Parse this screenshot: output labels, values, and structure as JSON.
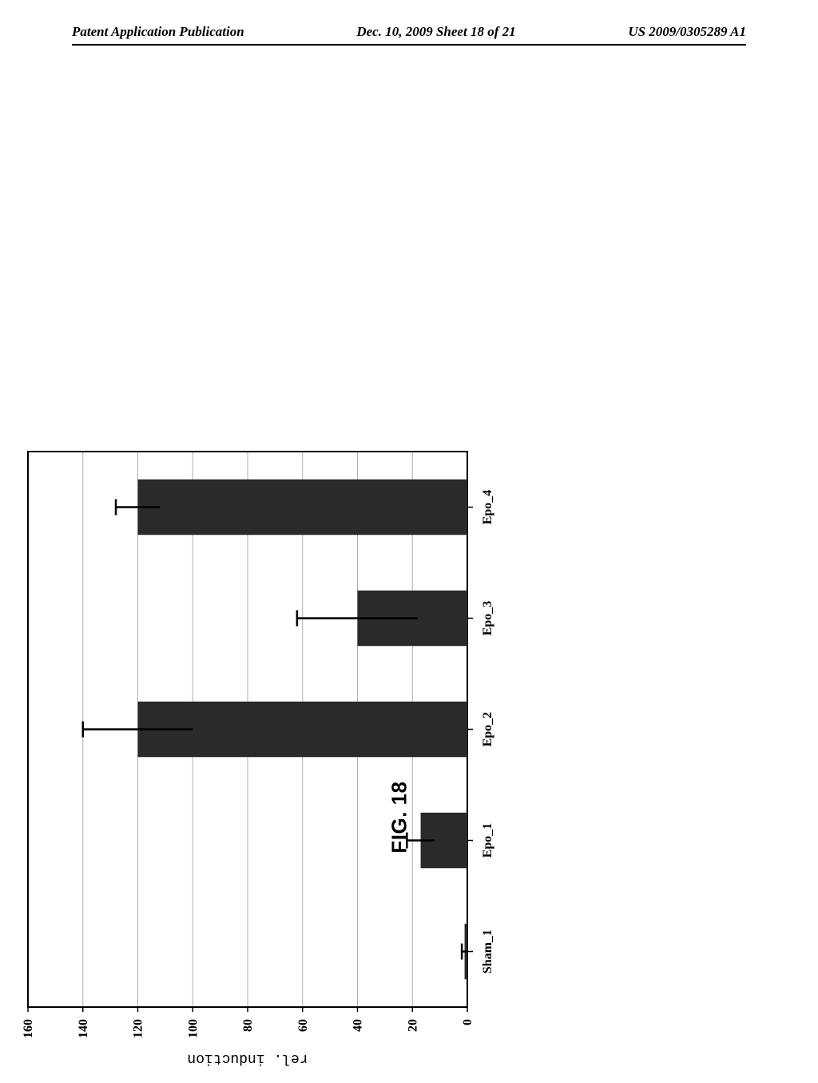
{
  "header": {
    "left": "Patent Application Publication",
    "center": "Dec. 10, 2009  Sheet 18 of 21",
    "right": "US 2009/0305289 A1"
  },
  "figure_label": "FIG. 18",
  "chart": {
    "type": "bar",
    "ylabel": "rel. induction",
    "ylim": [
      0,
      160
    ],
    "ytick_step": 20,
    "categories": [
      "Sham_1",
      "Epo_1",
      "Epo_2",
      "Epo_3",
      "Epo_4"
    ],
    "values": [
      1,
      17,
      120,
      40,
      120
    ],
    "error_bars": [
      1,
      5,
      20,
      22,
      8
    ],
    "bar_color": "#2a2a2a",
    "background_color": "#ffffff",
    "grid_color": "#b0b0b0",
    "border_color": "#000000",
    "tick_font_size": 16,
    "axis_label_font_size": 18,
    "bar_width_ratio": 0.5
  }
}
